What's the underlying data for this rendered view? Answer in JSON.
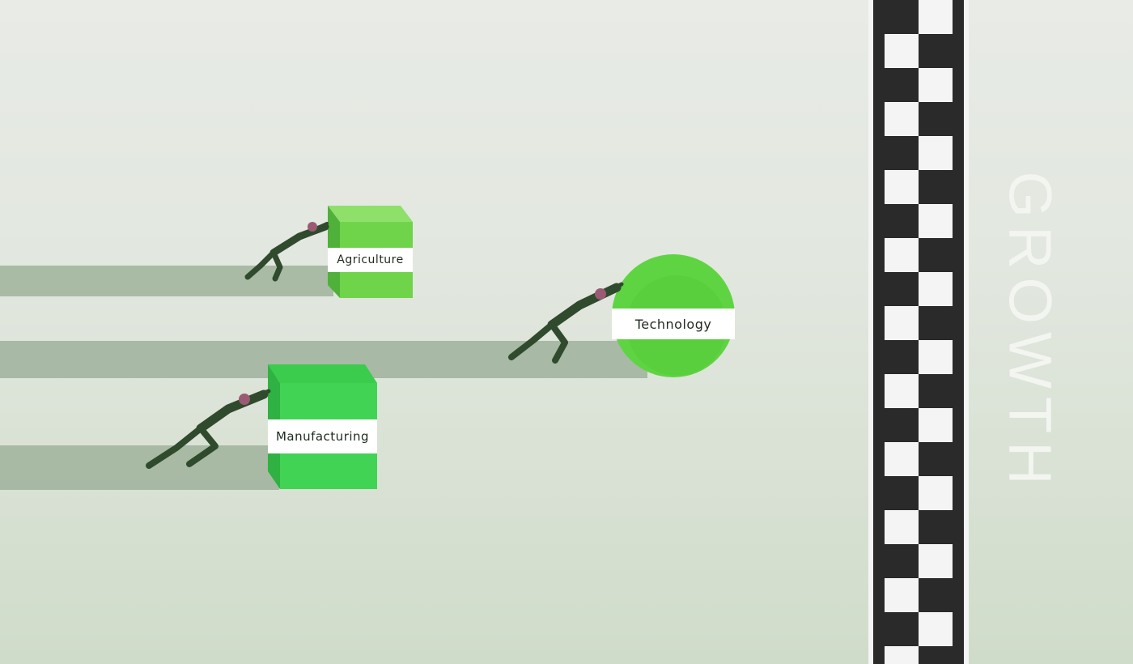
{
  "items": [
    {
      "id": "agriculture",
      "label": "Agriculture"
    },
    {
      "id": "technology",
      "label": "Technology"
    },
    {
      "id": "manufacturing",
      "label": "Manufacturing"
    }
  ],
  "finish": {
    "label": "GROWTH"
  },
  "colors": {
    "background": "#e4e8e1",
    "shadow": "#9fb29b",
    "agriculture_box": "#6fd44a",
    "technology_ball": "#5fd443",
    "manufacturing_box": "#41d354",
    "figure": "#2f4a2c",
    "track": "#2a2a2a",
    "checker": "#f4f4f4"
  }
}
